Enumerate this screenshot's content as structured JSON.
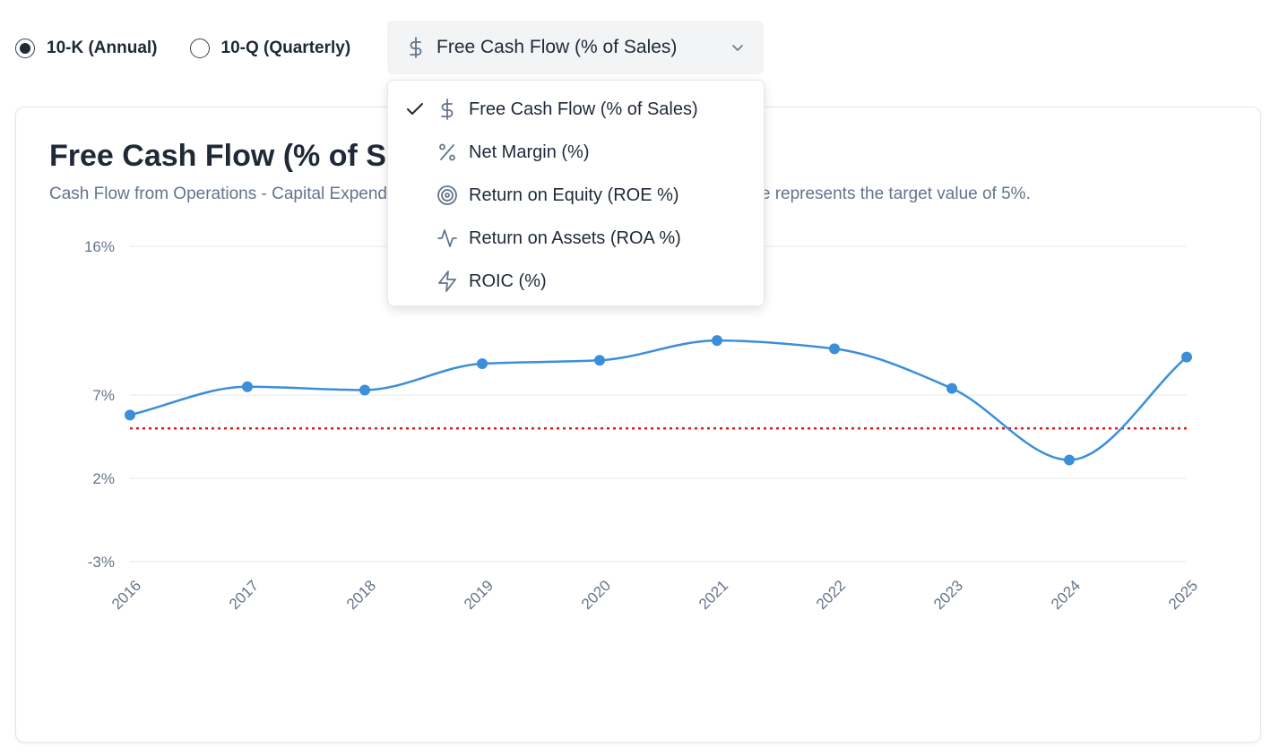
{
  "filing_type": {
    "options": [
      {
        "label": "10-K (Annual)",
        "selected": true
      },
      {
        "label": "10-Q (Quarterly)",
        "selected": false
      }
    ]
  },
  "metric_select": {
    "selected_label": "Free Cash Flow (% of Sales)",
    "selected_icon": "dollar-icon",
    "options": [
      {
        "label": "Free Cash Flow (% of Sales)",
        "icon": "dollar-icon",
        "checked": true
      },
      {
        "label": "Net Margin (%)",
        "icon": "percent-icon",
        "checked": false
      },
      {
        "label": "Return on Equity (ROE %)",
        "icon": "target-icon",
        "checked": false
      },
      {
        "label": "Return on Assets (ROA %)",
        "icon": "activity-icon",
        "checked": false
      },
      {
        "label": "ROIC (%)",
        "icon": "zap-icon",
        "checked": false
      }
    ]
  },
  "card": {
    "title": "Free Cash Flow (% of Sales)",
    "subtitle": "Cash Flow from Operations - Capital Expenditures as a percentage of sales. The red dotted line represents the target value of 5%."
  },
  "chart_data": {
    "type": "line",
    "x": [
      "2016",
      "2017",
      "2018",
      "2019",
      "2020",
      "2021",
      "2022",
      "2023",
      "2024",
      "2025"
    ],
    "series": [
      {
        "values": [
          5.8,
          7.5,
          7.3,
          8.9,
          9.1,
          10.3,
          9.8,
          7.4,
          3.1,
          9.3
        ],
        "color": "#3b8fd9"
      }
    ],
    "y_ticks": [
      "16%",
      "7%",
      "2%",
      "-3%"
    ],
    "y_tick_values": [
      16,
      7,
      2,
      -3
    ],
    "ylim": [
      -3,
      16
    ],
    "y_axis_breaks": [
      7
    ],
    "target": {
      "value": 5,
      "color": "#e11d1d",
      "style": "dotted"
    },
    "grid": true,
    "legend": "none"
  }
}
